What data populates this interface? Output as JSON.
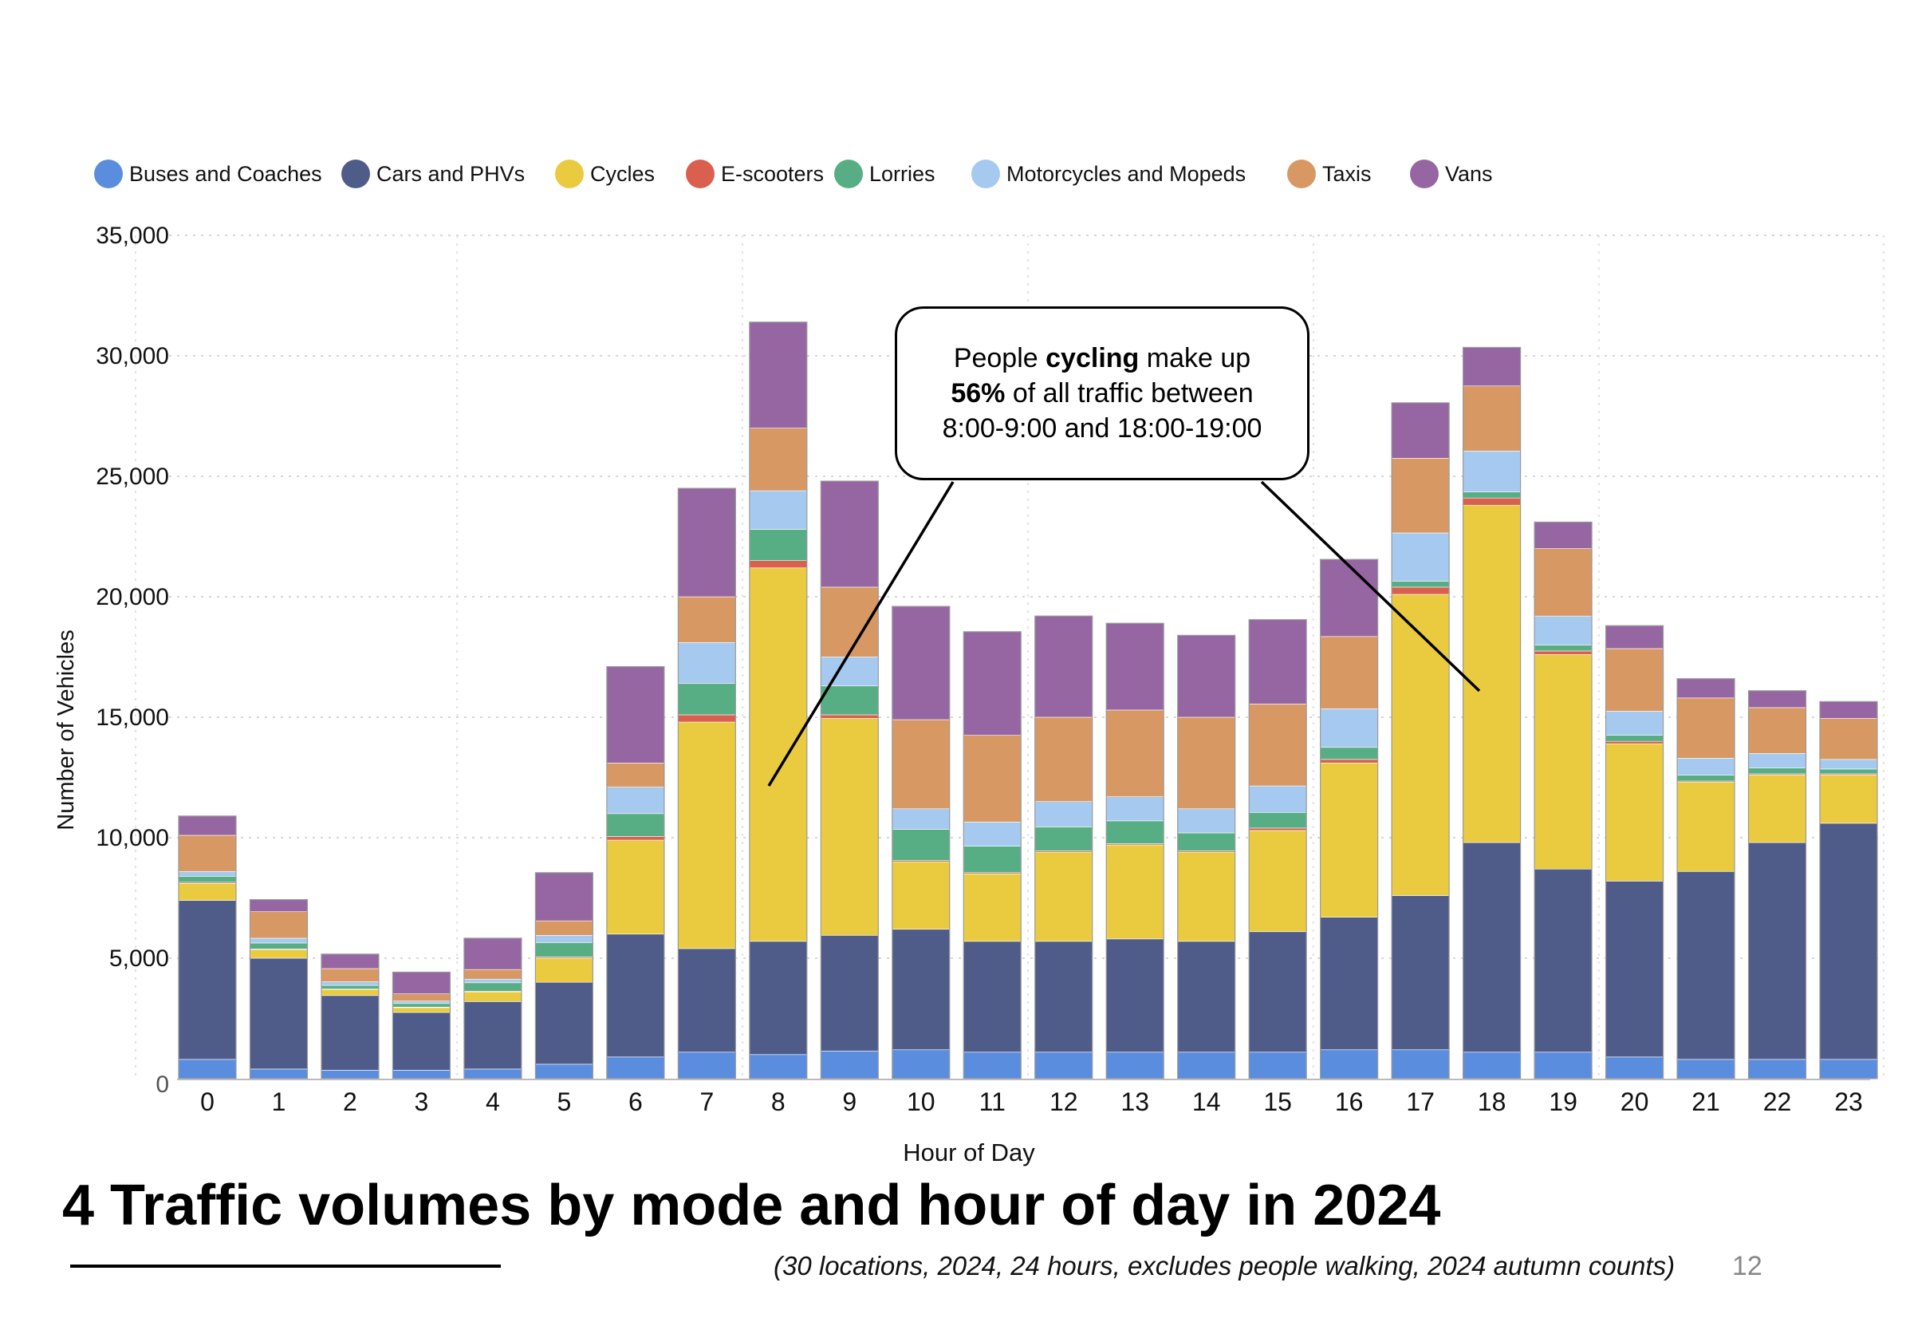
{
  "title": "4 Traffic volumes by mode and hour of day in 2024",
  "subtitle": "(30 locations, 2024, 24 hours, excludes people walking, 2024 autumn counts)",
  "page_number": "12",
  "callout": {
    "line1_pre": "People ",
    "line1_bold": "cycling",
    "line1_post": " make up",
    "line2_bold": "56%",
    "line2_post": " of all traffic between",
    "line3": "8:00-9:00 and 18:00-19:00"
  },
  "legend": [
    {
      "name": "Buses and Coaches",
      "color": "#5b8ddf"
    },
    {
      "name": "Cars and PHVs",
      "color": "#4f5b88"
    },
    {
      "name": "Cycles",
      "color": "#eacb3f"
    },
    {
      "name": "E-scooters",
      "color": "#d9604f"
    },
    {
      "name": "Lorries",
      "color": "#58ae84"
    },
    {
      "name": "Motorcycles and Mopeds",
      "color": "#a6c9ef"
    },
    {
      "name": "Taxis",
      "color": "#d79864"
    },
    {
      "name": "Vans",
      "color": "#9566a2"
    }
  ],
  "chart_data": {
    "type": "bar",
    "stacked": true,
    "xlabel": "Hour of Day",
    "ylabel": "Number of Vehicles",
    "ylim": [
      0,
      35000
    ],
    "yticks": [
      0,
      5000,
      10000,
      15000,
      20000,
      25000,
      30000,
      35000
    ],
    "ytick_labels": [
      "0",
      "5,000",
      "10,000",
      "15,000",
      "20,000",
      "25,000",
      "30,000",
      "35,000"
    ],
    "grid": true,
    "legend_position": "top",
    "categories": [
      "0",
      "1",
      "2",
      "3",
      "4",
      "5",
      "6",
      "7",
      "8",
      "9",
      "10",
      "11",
      "12",
      "13",
      "14",
      "15",
      "16",
      "17",
      "18",
      "19",
      "20",
      "21",
      "22",
      "23"
    ],
    "series": [
      {
        "name": "Buses and Coaches",
        "color": "#5b8ddf",
        "values": [
          800,
          400,
          350,
          350,
          400,
          600,
          900,
          1100,
          1000,
          1150,
          1200,
          1100,
          1100,
          1100,
          1100,
          1100,
          1200,
          1200,
          1100,
          1100,
          900,
          800,
          800,
          800
        ]
      },
      {
        "name": "Cars and PHVs",
        "color": "#4f5b88",
        "values": [
          6600,
          4600,
          3100,
          2400,
          2800,
          3400,
          5100,
          4300,
          4700,
          4800,
          5000,
          4600,
          4600,
          4700,
          4600,
          5000,
          5500,
          6400,
          8700,
          7600,
          7300,
          7800,
          9000,
          9800
        ]
      },
      {
        "name": "Cycles",
        "color": "#eacb3f",
        "values": [
          700,
          350,
          250,
          200,
          400,
          1000,
          3900,
          9400,
          15500,
          9000,
          2800,
          2800,
          3700,
          3900,
          3700,
          4200,
          6400,
          12500,
          14000,
          8900,
          5700,
          3700,
          2800,
          2000
        ]
      },
      {
        "name": "E-scooters",
        "color": "#d9604f",
        "values": [
          50,
          30,
          20,
          20,
          30,
          50,
          150,
          300,
          300,
          150,
          50,
          50,
          50,
          50,
          50,
          100,
          150,
          300,
          300,
          150,
          100,
          50,
          50,
          50
        ]
      },
      {
        "name": "Lorries",
        "color": "#58ae84",
        "values": [
          250,
          250,
          150,
          150,
          350,
          600,
          950,
          1300,
          1300,
          1200,
          1300,
          1100,
          1000,
          950,
          750,
          650,
          500,
          250,
          250,
          250,
          250,
          250,
          250,
          200
        ]
      },
      {
        "name": "Motorcycles and Mopeds",
        "color": "#a6c9ef",
        "values": [
          200,
          200,
          150,
          100,
          150,
          300,
          1100,
          1700,
          1600,
          1200,
          850,
          1000,
          1050,
          1000,
          1000,
          1100,
          1600,
          2000,
          1700,
          1200,
          1000,
          700,
          600,
          400
        ]
      },
      {
        "name": "Taxis",
        "color": "#d79864",
        "values": [
          1500,
          1100,
          550,
          300,
          400,
          600,
          1000,
          1900,
          2600,
          2900,
          3700,
          3600,
          3500,
          3600,
          3800,
          3400,
          3000,
          3100,
          2700,
          2800,
          2600,
          2500,
          1900,
          1700
        ]
      },
      {
        "name": "Vans",
        "color": "#9566a2",
        "values": [
          800,
          500,
          600,
          900,
          1300,
          2000,
          4000,
          4500,
          4400,
          4400,
          4700,
          4300,
          4200,
          3600,
          3400,
          3500,
          3200,
          2300,
          1600,
          1100,
          950,
          800,
          700,
          700
        ]
      }
    ]
  }
}
